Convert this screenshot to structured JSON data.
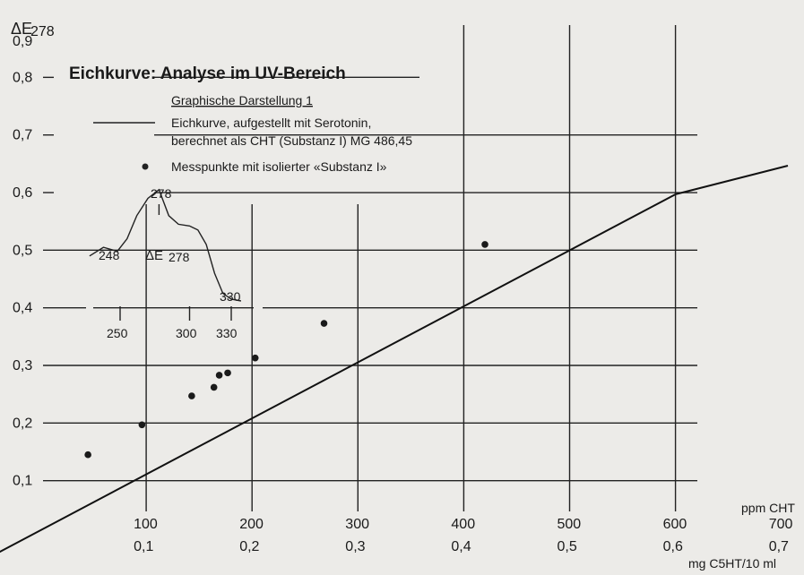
{
  "chart_data": {
    "type": "scatter",
    "title": "Eichkurve: Analyse im UV-Bereich",
    "subtitle": "Graphische Darstellung 1",
    "ylabel": "ΔE",
    "ylabel_sub": "278",
    "xlabel_top": "ppm CHT",
    "xlabel_bottom": "mg C5HT/10 ml",
    "xlim": [
      0,
      700
    ],
    "ylim": [
      0,
      0.9
    ],
    "x_ticks_top": [
      "100",
      "200",
      "300",
      "400",
      "500",
      "600",
      "700"
    ],
    "x_ticks_bottom": [
      "0,1",
      "0,2",
      "0,3",
      "0,4",
      "0,5",
      "0,6",
      "0,7"
    ],
    "y_ticks": [
      "0,1",
      "0,2",
      "0,3",
      "0,4",
      "0,5",
      "0,6",
      "0,7",
      "0,8",
      "0,9"
    ],
    "grid": true,
    "legend": {
      "line_label_1": "Eichkurve, aufgestellt mit Serotonin,",
      "line_label_2": "berechnet als CHT (Substanz I) MG 486,45",
      "point_label": "Messpunkte mit isolierter «Substanz I»"
    },
    "calibration_line": [
      [
        -45,
        -0.03
      ],
      [
        600,
        0.597
      ]
    ],
    "points": [
      {
        "x": 45,
        "y": 0.145
      },
      {
        "x": 96,
        "y": 0.197
      },
      {
        "x": 143,
        "y": 0.247
      },
      {
        "x": 164,
        "y": 0.262
      },
      {
        "x": 169,
        "y": 0.283
      },
      {
        "x": 177,
        "y": 0.287
      },
      {
        "x": 203,
        "y": 0.313
      },
      {
        "x": 268,
        "y": 0.373
      },
      {
        "x": 420,
        "y": 0.51
      }
    ],
    "inset": {
      "ylabel": "ΔE",
      "ylabel_sub": "278",
      "x_ticks": [
        "250",
        "300",
        "330"
      ],
      "labels": [
        "248",
        "278",
        "330"
      ],
      "curve": [
        [
          228,
          0.49
        ],
        [
          238,
          0.505
        ],
        [
          248,
          0.498
        ],
        [
          255,
          0.52
        ],
        [
          262,
          0.56
        ],
        [
          270,
          0.59
        ],
        [
          278,
          0.605
        ],
        [
          285,
          0.56
        ],
        [
          292,
          0.545
        ],
        [
          300,
          0.542
        ],
        [
          306,
          0.535
        ],
        [
          312,
          0.51
        ],
        [
          318,
          0.46
        ],
        [
          324,
          0.425
        ],
        [
          330,
          0.415
        ],
        [
          337,
          0.412
        ]
      ]
    }
  }
}
